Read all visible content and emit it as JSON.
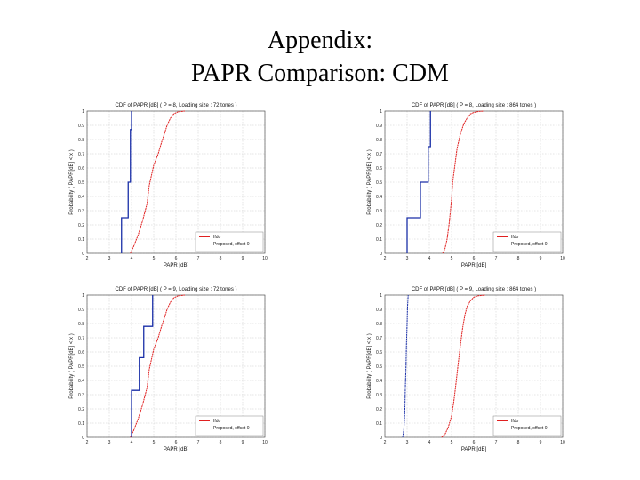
{
  "slide": {
    "title_line1": "Appendix:",
    "title_line2": "PAPR Comparison: CDM"
  },
  "colors": {
    "ifdo": "#e02020",
    "proposed": "#1a2fa8",
    "grid": "#cccccc",
    "axis": "#555555"
  },
  "chart_data": [
    {
      "type": "line",
      "title": "CDF of PAPR [dB] ( P = 8, Loading size : 72 tones )",
      "xlabel": "PAPR [dB]",
      "ylabel": "Probability ( PAPR[dB] < x )",
      "xlim": [
        2,
        10
      ],
      "ylim": [
        0,
        1
      ],
      "xticks": [
        "2",
        "3",
        "4",
        "5",
        "6",
        "7",
        "8",
        "9",
        "10"
      ],
      "yticks": [
        "0",
        "0.1",
        "0.2",
        "0.3",
        "0.4",
        "0.5",
        "0.6",
        "0.7",
        "0.8",
        "0.9",
        "1"
      ],
      "grid": true,
      "legend_position": "bottom-right",
      "series": [
        {
          "name": "Ifdo",
          "color": "#e02020",
          "step": false,
          "x": [
            3.95,
            4.1,
            4.3,
            4.5,
            4.7,
            4.8,
            5.0,
            5.2,
            5.35,
            5.5,
            5.6,
            5.75,
            5.9,
            6.1,
            6.4
          ],
          "y": [
            0.0,
            0.05,
            0.13,
            0.23,
            0.35,
            0.48,
            0.62,
            0.7,
            0.78,
            0.85,
            0.9,
            0.95,
            0.98,
            0.995,
            1.0
          ]
        },
        {
          "name": "Proposed, offset 0",
          "color": "#1a2fa8",
          "step": true,
          "x": [
            3.55,
            3.55,
            3.85,
            3.85,
            3.95,
            3.95,
            4.0,
            4.0
          ],
          "y": [
            0.0,
            0.25,
            0.25,
            0.5,
            0.5,
            0.87,
            0.87,
            1.0
          ]
        }
      ]
    },
    {
      "type": "line",
      "title": "CDF of PAPR [dB] ( P = 8, Loading size : 864 tones )",
      "xlabel": "PAPR [dB]",
      "ylabel": "Probability ( PAPR[dB] < x )",
      "xlim": [
        2,
        10
      ],
      "ylim": [
        0,
        1
      ],
      "xticks": [
        "2",
        "3",
        "4",
        "5",
        "6",
        "7",
        "8",
        "9",
        "10"
      ],
      "yticks": [
        "0",
        "0.1",
        "0.2",
        "0.3",
        "0.4",
        "0.5",
        "0.6",
        "0.7",
        "0.8",
        "0.9",
        "1"
      ],
      "grid": true,
      "legend_position": "bottom-right",
      "series": [
        {
          "name": "Ifdo",
          "color": "#e02020",
          "step": false,
          "x": [
            4.6,
            4.7,
            4.8,
            4.9,
            5.0,
            5.05,
            5.15,
            5.25,
            5.4,
            5.55,
            5.7,
            5.85,
            6.0,
            6.2,
            6.45
          ],
          "y": [
            0.0,
            0.03,
            0.1,
            0.22,
            0.38,
            0.5,
            0.62,
            0.74,
            0.84,
            0.91,
            0.95,
            0.98,
            0.99,
            0.997,
            1.0
          ]
        },
        {
          "name": "Proposed, offset 0",
          "color": "#1a2fa8",
          "step": true,
          "x": [
            3.0,
            3.0,
            3.6,
            3.6,
            3.95,
            3.95,
            4.05,
            4.05
          ],
          "y": [
            0.0,
            0.25,
            0.25,
            0.5,
            0.5,
            0.75,
            0.75,
            1.0
          ]
        }
      ]
    },
    {
      "type": "line",
      "title": "CDF of PAPR [dB] ( P = 9, Loading size : 72 tones )",
      "xlabel": "PAPR [dB]",
      "ylabel": "Probability ( PAPR[dB] < x )",
      "xlim": [
        2,
        10
      ],
      "ylim": [
        0,
        1
      ],
      "xticks": [
        "2",
        "3",
        "4",
        "5",
        "6",
        "7",
        "8",
        "9",
        "10"
      ],
      "yticks": [
        "0",
        "0.1",
        "0.2",
        "0.3",
        "0.4",
        "0.5",
        "0.6",
        "0.7",
        "0.8",
        "0.9",
        "1"
      ],
      "grid": true,
      "legend_position": "bottom-right",
      "series": [
        {
          "name": "Ifdo",
          "color": "#e02020",
          "step": false,
          "x": [
            3.95,
            4.1,
            4.3,
            4.5,
            4.7,
            4.8,
            5.0,
            5.2,
            5.35,
            5.5,
            5.6,
            5.75,
            5.9,
            6.1,
            6.4
          ],
          "y": [
            0.0,
            0.05,
            0.13,
            0.23,
            0.35,
            0.48,
            0.62,
            0.7,
            0.78,
            0.85,
            0.9,
            0.95,
            0.98,
            0.995,
            1.0
          ]
        },
        {
          "name": "Proposed, offset 0",
          "color": "#1a2fa8",
          "step": true,
          "x": [
            4.0,
            4.0,
            4.35,
            4.35,
            4.55,
            4.55,
            4.95,
            4.95
          ],
          "y": [
            0.0,
            0.33,
            0.33,
            0.56,
            0.56,
            0.78,
            0.78,
            1.0
          ]
        }
      ]
    },
    {
      "type": "line",
      "title": "CDF of PAPR [dB] ( P = 9, Loading size : 864 tones )",
      "xlabel": "PAPR [dB]",
      "ylabel": "Probability ( PAPR[dB] < x )",
      "xlim": [
        2,
        10
      ],
      "ylim": [
        0,
        1
      ],
      "xticks": [
        "2",
        "3",
        "4",
        "5",
        "6",
        "7",
        "8",
        "9",
        "10"
      ],
      "yticks": [
        "0",
        "0.1",
        "0.2",
        "0.3",
        "0.4",
        "0.5",
        "0.6",
        "0.7",
        "0.8",
        "0.9",
        "1"
      ],
      "grid": true,
      "legend_position": "bottom-right",
      "series": [
        {
          "name": "Ifdo",
          "color": "#e02020",
          "step": false,
          "x": [
            4.55,
            4.7,
            4.85,
            5.0,
            5.1,
            5.2,
            5.3,
            5.4,
            5.5,
            5.6,
            5.7,
            5.85,
            6.0,
            6.2,
            6.5
          ],
          "y": [
            0.0,
            0.02,
            0.07,
            0.15,
            0.25,
            0.38,
            0.52,
            0.65,
            0.77,
            0.86,
            0.92,
            0.96,
            0.985,
            0.995,
            1.0
          ]
        },
        {
          "name": "Proposed, offset 0",
          "color": "#1a2fa8",
          "step": false,
          "x": [
            2.8,
            2.85,
            2.88,
            2.9,
            2.92,
            2.95,
            2.97,
            3.0,
            3.02,
            3.05
          ],
          "y": [
            0.0,
            0.05,
            0.12,
            0.2,
            0.35,
            0.5,
            0.65,
            0.8,
            0.92,
            1.0
          ]
        }
      ]
    }
  ]
}
